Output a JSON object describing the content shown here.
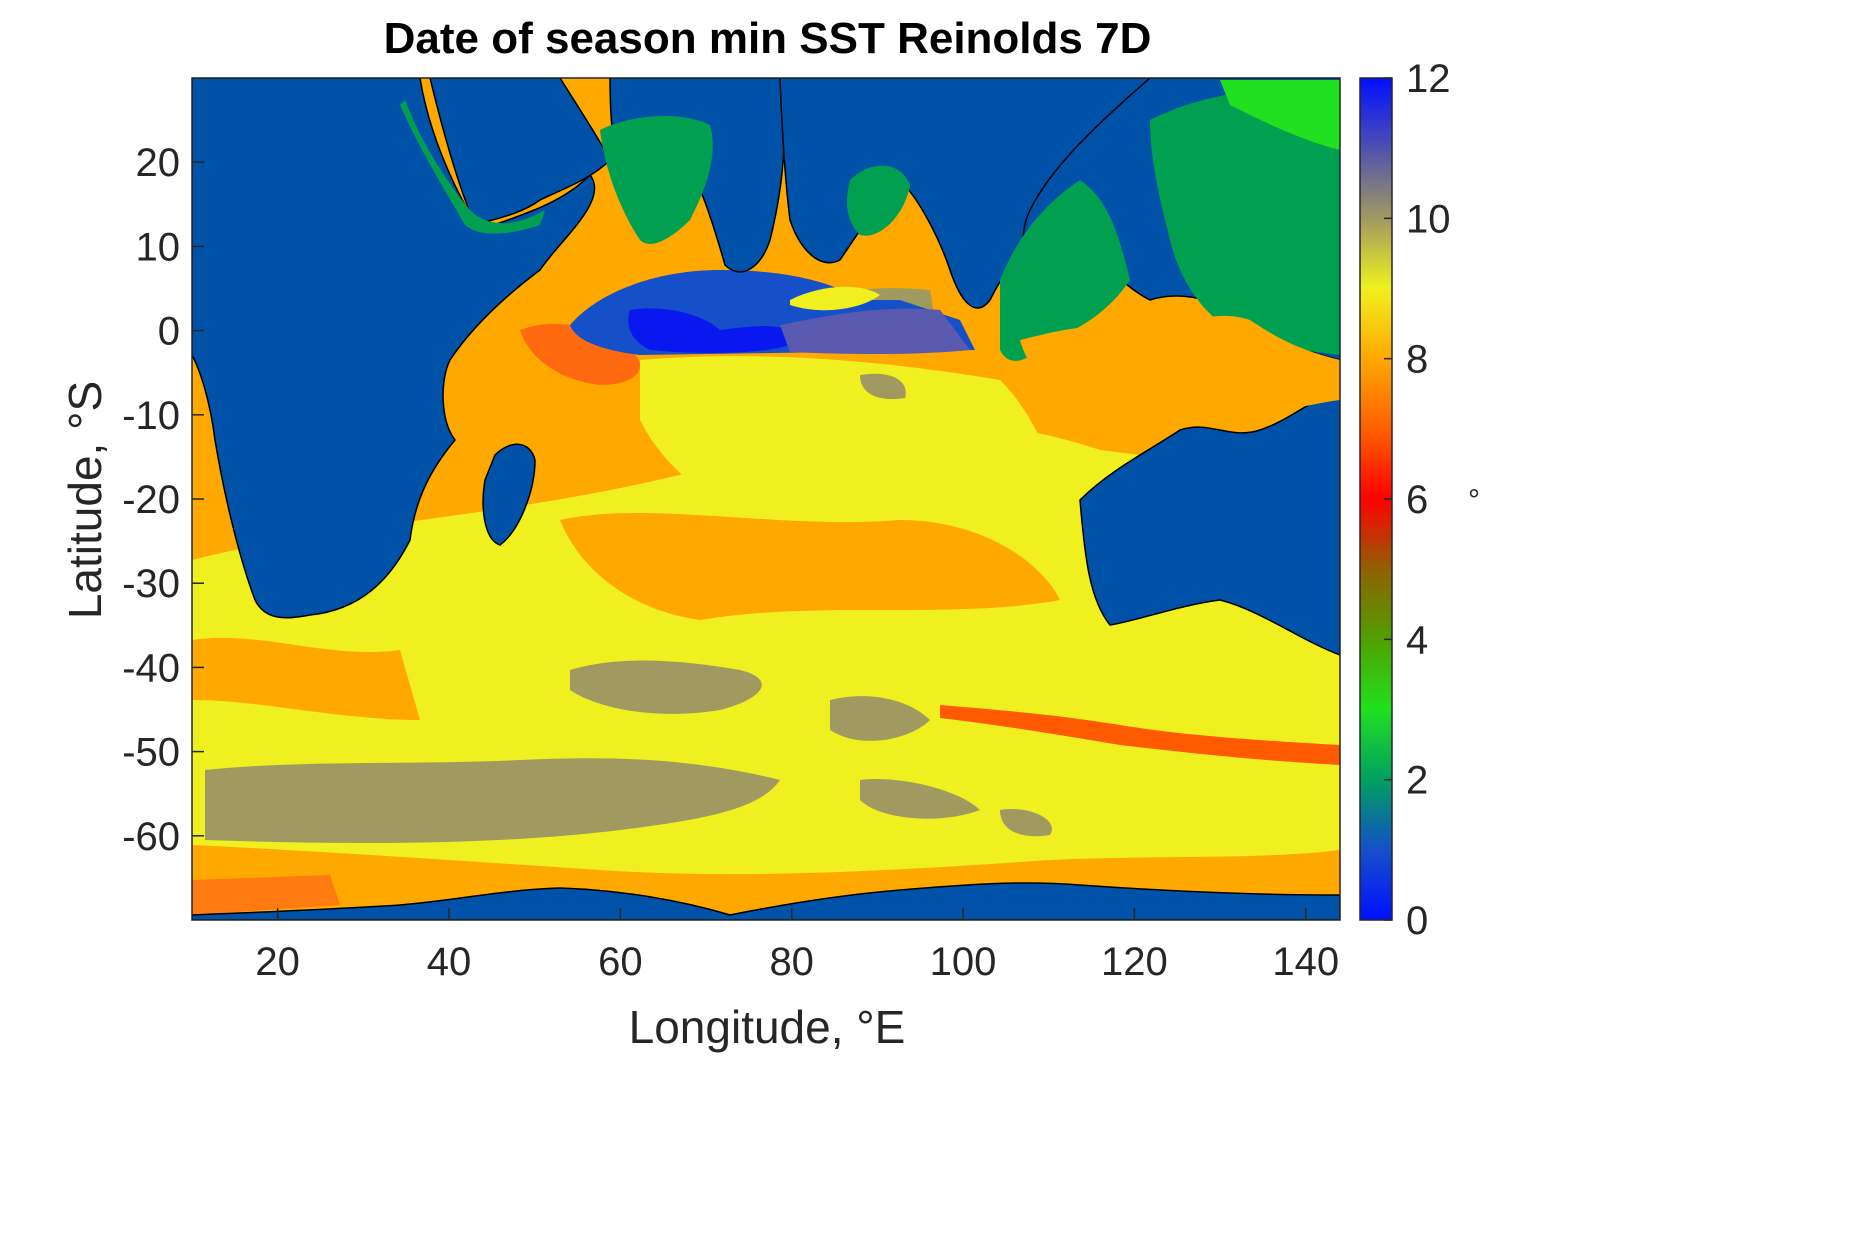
{
  "title": "Date of season min SST Reinolds 7D",
  "chart_data": {
    "type": "heatmap",
    "title": "Date of season min SST Reinolds 7D",
    "xlabel": "Longitude, °E",
    "ylabel": "Latitude, °S",
    "xlim": [
      10,
      144
    ],
    "ylim": [
      -70,
      30
    ],
    "x_ticks": [
      20,
      40,
      60,
      80,
      100,
      120,
      140
    ],
    "y_ticks": [
      20,
      10,
      0,
      -10,
      -20,
      -30,
      -40,
      -50,
      -60
    ],
    "colorbar": {
      "label": "°",
      "range": [
        0,
        12
      ],
      "ticks": [
        0,
        2,
        4,
        6,
        8,
        10,
        12
      ],
      "colors": [
        {
          "value": 0,
          "color": "#0010ff"
        },
        {
          "value": 1,
          "color": "#1550c8"
        },
        {
          "value": 2,
          "color": "#00a060"
        },
        {
          "value": 3,
          "color": "#20e020"
        },
        {
          "value": 4,
          "color": "#50a000"
        },
        {
          "value": 5,
          "color": "#906000"
        },
        {
          "value": 6,
          "color": "#ff0000"
        },
        {
          "value": 7,
          "color": "#ff6000"
        },
        {
          "value": 8,
          "color": "#ffa800"
        },
        {
          "value": 9,
          "color": "#f0f020"
        },
        {
          "value": 10,
          "color": "#a09a60"
        },
        {
          "value": 11,
          "color": "#5050b0"
        },
        {
          "value": 12,
          "color": "#0010ff"
        }
      ]
    },
    "land_color": "#0051a8"
  }
}
